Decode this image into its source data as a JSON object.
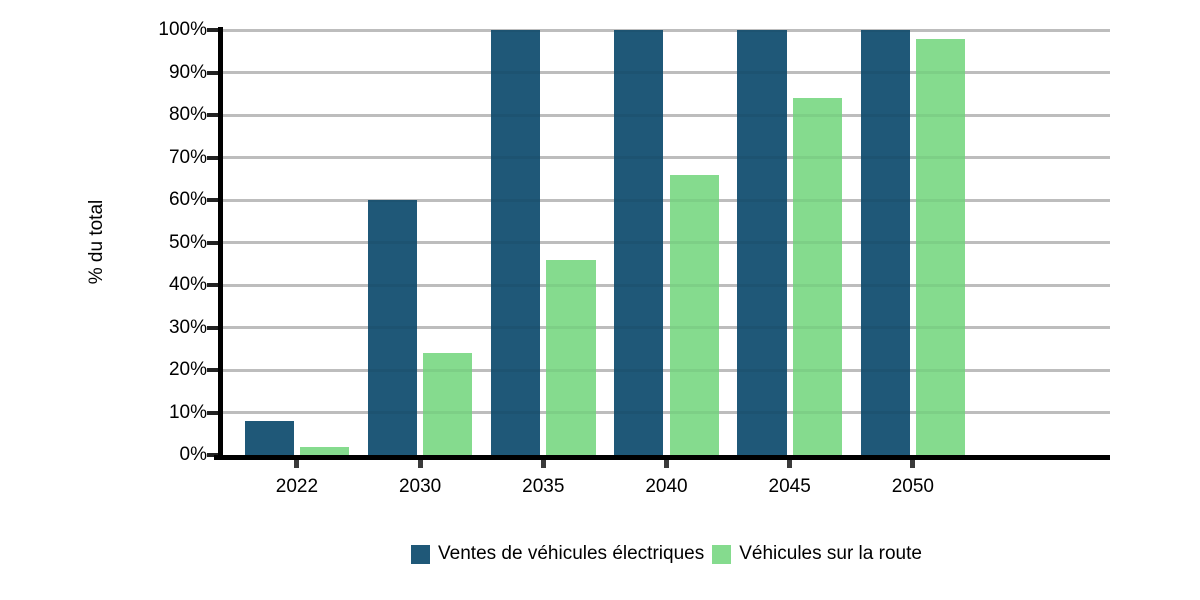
{
  "chart_data": {
    "type": "bar",
    "title": "",
    "xlabel": "",
    "ylabel": "% du total",
    "categories": [
      "2022",
      "2030",
      "2035",
      "2040",
      "2045",
      "2050"
    ],
    "series": [
      {
        "name": "Ventes de véhicules électriques",
        "color": "#1f5878",
        "values": [
          8,
          60,
          100,
          100,
          100,
          100
        ]
      },
      {
        "name": "Véhicules sur la route",
        "color": "#85db8e",
        "values": [
          2,
          24,
          46,
          66,
          84,
          98
        ]
      }
    ],
    "ylim": [
      0,
      100
    ],
    "ytick_step": 10,
    "ytick_labels": [
      "0%",
      "10%",
      "20%",
      "30%",
      "40%",
      "50%",
      "60%",
      "70%",
      "80%",
      "90%",
      "100%"
    ],
    "grid": true,
    "legend_position": "bottom"
  },
  "colors": {
    "grid": "#c8c8c8",
    "axis": "#000000",
    "tick": "#3a3a3a",
    "background": "#ffffff",
    "text": "#000000"
  }
}
